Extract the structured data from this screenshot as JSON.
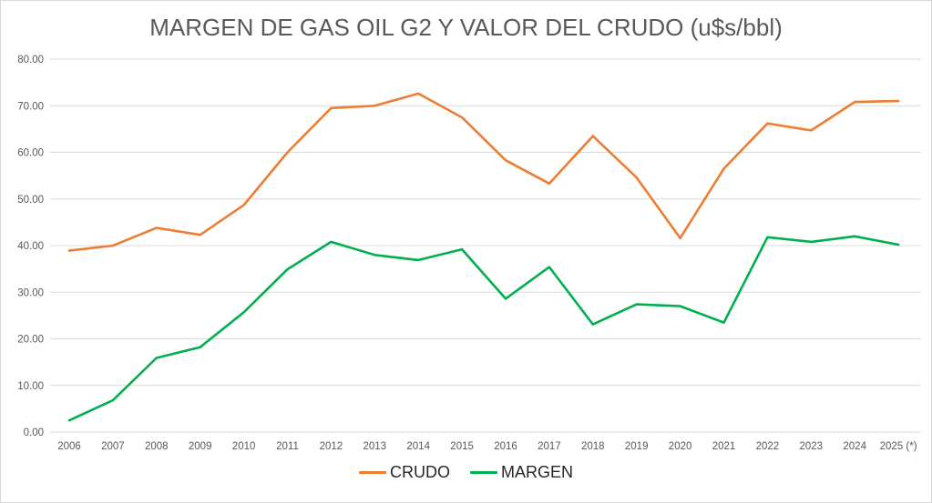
{
  "chart_data": {
    "type": "line",
    "title": "MARGEN DE GAS OIL G2 Y VALOR DEL CRUDO (u$s/bbl)",
    "categories": [
      "2006",
      "2007",
      "2008",
      "2009",
      "2010",
      "2011",
      "2012",
      "2013",
      "2014",
      "2015",
      "2016",
      "2017",
      "2018",
      "2019",
      "2020",
      "2021",
      "2022",
      "2023",
      "2024",
      "2025 (*)"
    ],
    "series": [
      {
        "name": "CRUDO",
        "color": "#ED7D31",
        "values": [
          38.9,
          40.0,
          43.8,
          42.3,
          48.7,
          60.0,
          69.5,
          70.0,
          72.6,
          67.5,
          58.3,
          53.3,
          63.5,
          54.6,
          41.6,
          56.5,
          66.2,
          64.7,
          70.8,
          71.0
        ]
      },
      {
        "name": "MARGEN",
        "color": "#00B050",
        "values": [
          2.5,
          6.8,
          15.9,
          18.2,
          25.7,
          34.9,
          40.8,
          38.0,
          36.9,
          39.2,
          28.6,
          35.4,
          23.1,
          27.4,
          27.0,
          23.5,
          41.8,
          40.8,
          42.0,
          40.2
        ]
      }
    ],
    "xlabel": "",
    "ylabel": "",
    "ylim": [
      0,
      80
    ],
    "y_ticks": [
      "80.00",
      "70.00",
      "60.00",
      "50.00",
      "40.00",
      "30.00",
      "20.00",
      "10.00",
      "0.00"
    ],
    "grid": true,
    "legend_position": "bottom",
    "colors": {
      "gridline": "#D9D9D9",
      "axis_text": "#595959",
      "title_text": "#595959",
      "legend_text": "#262626",
      "border": "#D9D9D9",
      "background": "#FFFFFF"
    }
  }
}
